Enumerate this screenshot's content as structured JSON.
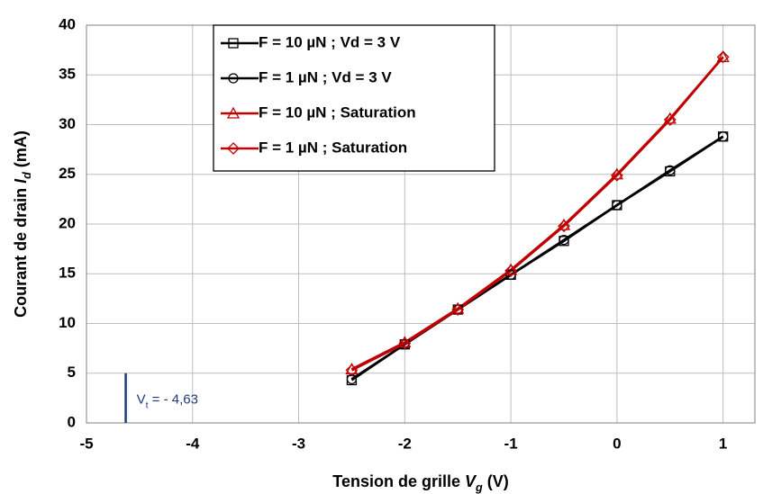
{
  "chart_data": {
    "type": "line",
    "xlabel": [
      "Tension de grille ",
      "V",
      "g",
      " (V)"
    ],
    "ylabel": [
      "Courant de drain ",
      "I",
      "d",
      " (mA)"
    ],
    "x": [
      -2.5,
      -2,
      -1.5,
      -1,
      -0.5,
      0,
      0.5,
      1
    ],
    "series": [
      {
        "name": "F = 10 µN ; Vd = 3 V",
        "color": "#000000",
        "marker": "square",
        "values": [
          4.3,
          7.9,
          11.4,
          14.9,
          18.3,
          21.9,
          25.3,
          28.8
        ]
      },
      {
        "name": "F = 1 µN ; Vd = 3 V",
        "color": "#000000",
        "marker": "circle",
        "values": [
          4.4,
          7.9,
          11.4,
          14.9,
          18.4,
          21.9,
          25.4,
          28.8
        ]
      },
      {
        "name": "F = 10 µN ; Saturation",
        "color": "#c00000",
        "marker": "triangle",
        "values": [
          5.4,
          8.1,
          11.5,
          15.4,
          19.9,
          25.0,
          30.6,
          36.8
        ]
      },
      {
        "name": "F = 1 µN ; Saturation",
        "color": "#c00000",
        "marker": "diamond",
        "values": [
          5.3,
          8.0,
          11.4,
          15.3,
          19.8,
          24.9,
          30.5,
          36.8
        ]
      }
    ],
    "annotation": {
      "parts": [
        "V",
        "t",
        " = - 4,63"
      ],
      "x": -4.63,
      "y": [
        0,
        5
      ],
      "color": "#1f3a7a"
    },
    "xlim": [
      -5,
      1.3
    ],
    "xticks": [
      -5,
      -4,
      -3,
      -2,
      -1,
      0,
      1
    ],
    "ylim": [
      0,
      40
    ],
    "yticks": [
      0,
      5,
      10,
      15,
      20,
      25,
      30,
      35,
      40
    ],
    "grid": true,
    "legend": "top-center"
  }
}
